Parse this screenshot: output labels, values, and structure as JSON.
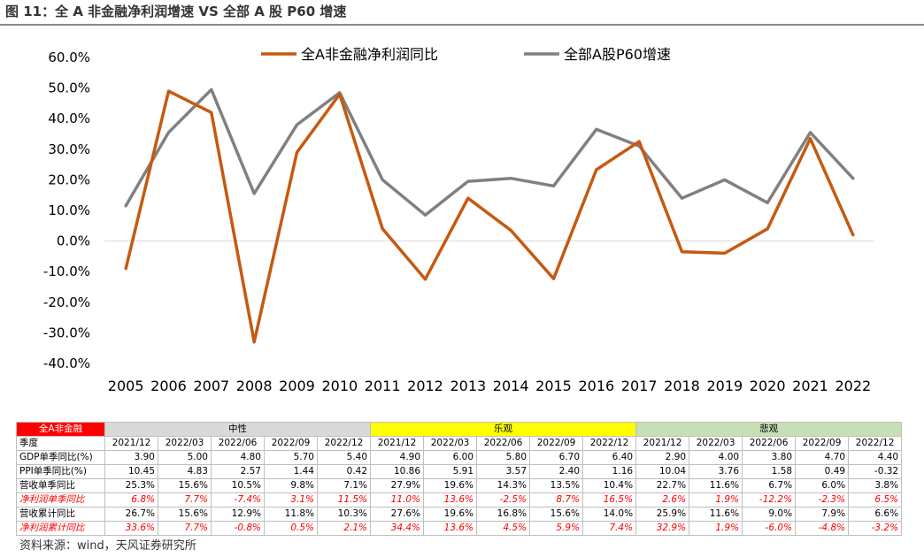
{
  "figure": {
    "title": "图 11：全 A 非金融净利润增速 VS 全部 A 股 P60 增速",
    "source": "资料来源：wind，天风证券研究所"
  },
  "chart_data": {
    "type": "line",
    "categories": [
      "2005",
      "2006",
      "2007",
      "2008",
      "2009",
      "2010",
      "2011",
      "2012",
      "2013",
      "2014",
      "2015",
      "2016",
      "2017",
      "2018",
      "2019",
      "2020",
      "2021",
      "2022"
    ],
    "ylim": [
      -0.4,
      0.6
    ],
    "yticks": [
      "-40.0%",
      "-30.0%",
      "-20.0%",
      "-10.0%",
      "0.0%",
      "10.0%",
      "20.0%",
      "30.0%",
      "40.0%",
      "50.0%",
      "60.0%"
    ],
    "legend_position": "top",
    "grid": false,
    "series": [
      {
        "name": "全A非金融净利润同比",
        "color": "#c65911",
        "values": [
          -0.09,
          0.49,
          0.42,
          -0.33,
          0.29,
          0.48,
          0.04,
          -0.125,
          0.14,
          0.035,
          -0.123,
          0.233,
          0.325,
          -0.035,
          -0.04,
          0.04,
          0.335,
          0.02
        ]
      },
      {
        "name": "全部A股P60增速",
        "color": "#808080",
        "values": [
          0.115,
          0.355,
          0.495,
          0.155,
          0.38,
          0.485,
          0.2,
          0.085,
          0.195,
          0.205,
          0.18,
          0.365,
          0.31,
          0.14,
          0.2,
          0.125,
          0.355,
          0.205
        ]
      }
    ]
  },
  "table": {
    "corner": "全A非金融",
    "groups": [
      "中性",
      "乐观",
      "悲观"
    ],
    "group_colors": [
      "#d9d9d9",
      "#ffff00",
      "#c5e0b4"
    ],
    "subheader_label": "季度",
    "periods": [
      "2021/12",
      "2022/03",
      "2022/06",
      "2022/09",
      "2022/12",
      "2021/12",
      "2022/03",
      "2022/06",
      "2022/09",
      "2022/12",
      "2021/12",
      "2022/03",
      "2022/06",
      "2022/09",
      "2022/12"
    ],
    "rows": [
      {
        "label": "GDP单季同比(%)",
        "highlight": false,
        "cells": [
          "3.90",
          "5.00",
          "4.80",
          "5.70",
          "5.40",
          "4.90",
          "6.00",
          "5.80",
          "6.70",
          "6.40",
          "2.90",
          "4.00",
          "3.80",
          "4.70",
          "4.40"
        ]
      },
      {
        "label": "PPI单季同比(%)",
        "highlight": false,
        "cells": [
          "10.45",
          "4.83",
          "2.57",
          "1.44",
          "0.42",
          "10.86",
          "5.91",
          "3.57",
          "2.40",
          "1.16",
          "10.04",
          "3.76",
          "1.58",
          "0.49",
          "-0.32"
        ]
      },
      {
        "label": "营收单季同比",
        "highlight": false,
        "cells": [
          "25.3%",
          "15.6%",
          "10.5%",
          "9.8%",
          "7.1%",
          "27.9%",
          "19.6%",
          "14.3%",
          "13.5%",
          "10.4%",
          "22.7%",
          "11.6%",
          "6.7%",
          "6.0%",
          "3.8%"
        ]
      },
      {
        "label": "净利润单季同比",
        "highlight": true,
        "cells": [
          "6.8%",
          "7.7%",
          "-7.4%",
          "3.1%",
          "11.5%",
          "11.0%",
          "13.6%",
          "-2.5%",
          "8.7%",
          "16.5%",
          "2.6%",
          "1.9%",
          "-12.2%",
          "-2.3%",
          "6.5%"
        ]
      },
      {
        "label": "营收累计同比",
        "highlight": false,
        "cells": [
          "26.7%",
          "15.6%",
          "12.9%",
          "11.8%",
          "10.3%",
          "27.6%",
          "19.6%",
          "16.8%",
          "15.6%",
          "14.0%",
          "25.9%",
          "11.6%",
          "9.0%",
          "7.9%",
          "6.6%"
        ]
      },
      {
        "label": "净利润累计同比",
        "highlight": true,
        "cells": [
          "33.6%",
          "7.7%",
          "-0.8%",
          "0.5%",
          "2.1%",
          "34.4%",
          "13.6%",
          "4.5%",
          "5.9%",
          "7.4%",
          "32.9%",
          "1.9%",
          "-6.0%",
          "-4.8%",
          "-3.2%"
        ]
      }
    ]
  }
}
